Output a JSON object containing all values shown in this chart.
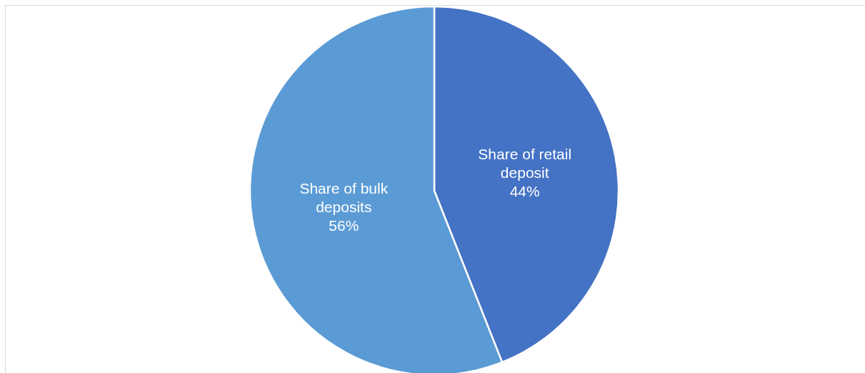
{
  "chart_data": {
    "type": "pie",
    "categories": [
      "Share of retail deposit",
      "Share of bulk deposits"
    ],
    "values": [
      44,
      56
    ],
    "value_labels": [
      "44%",
      "56%"
    ],
    "colors": [
      "#4472c4",
      "#5b9bd5"
    ]
  }
}
